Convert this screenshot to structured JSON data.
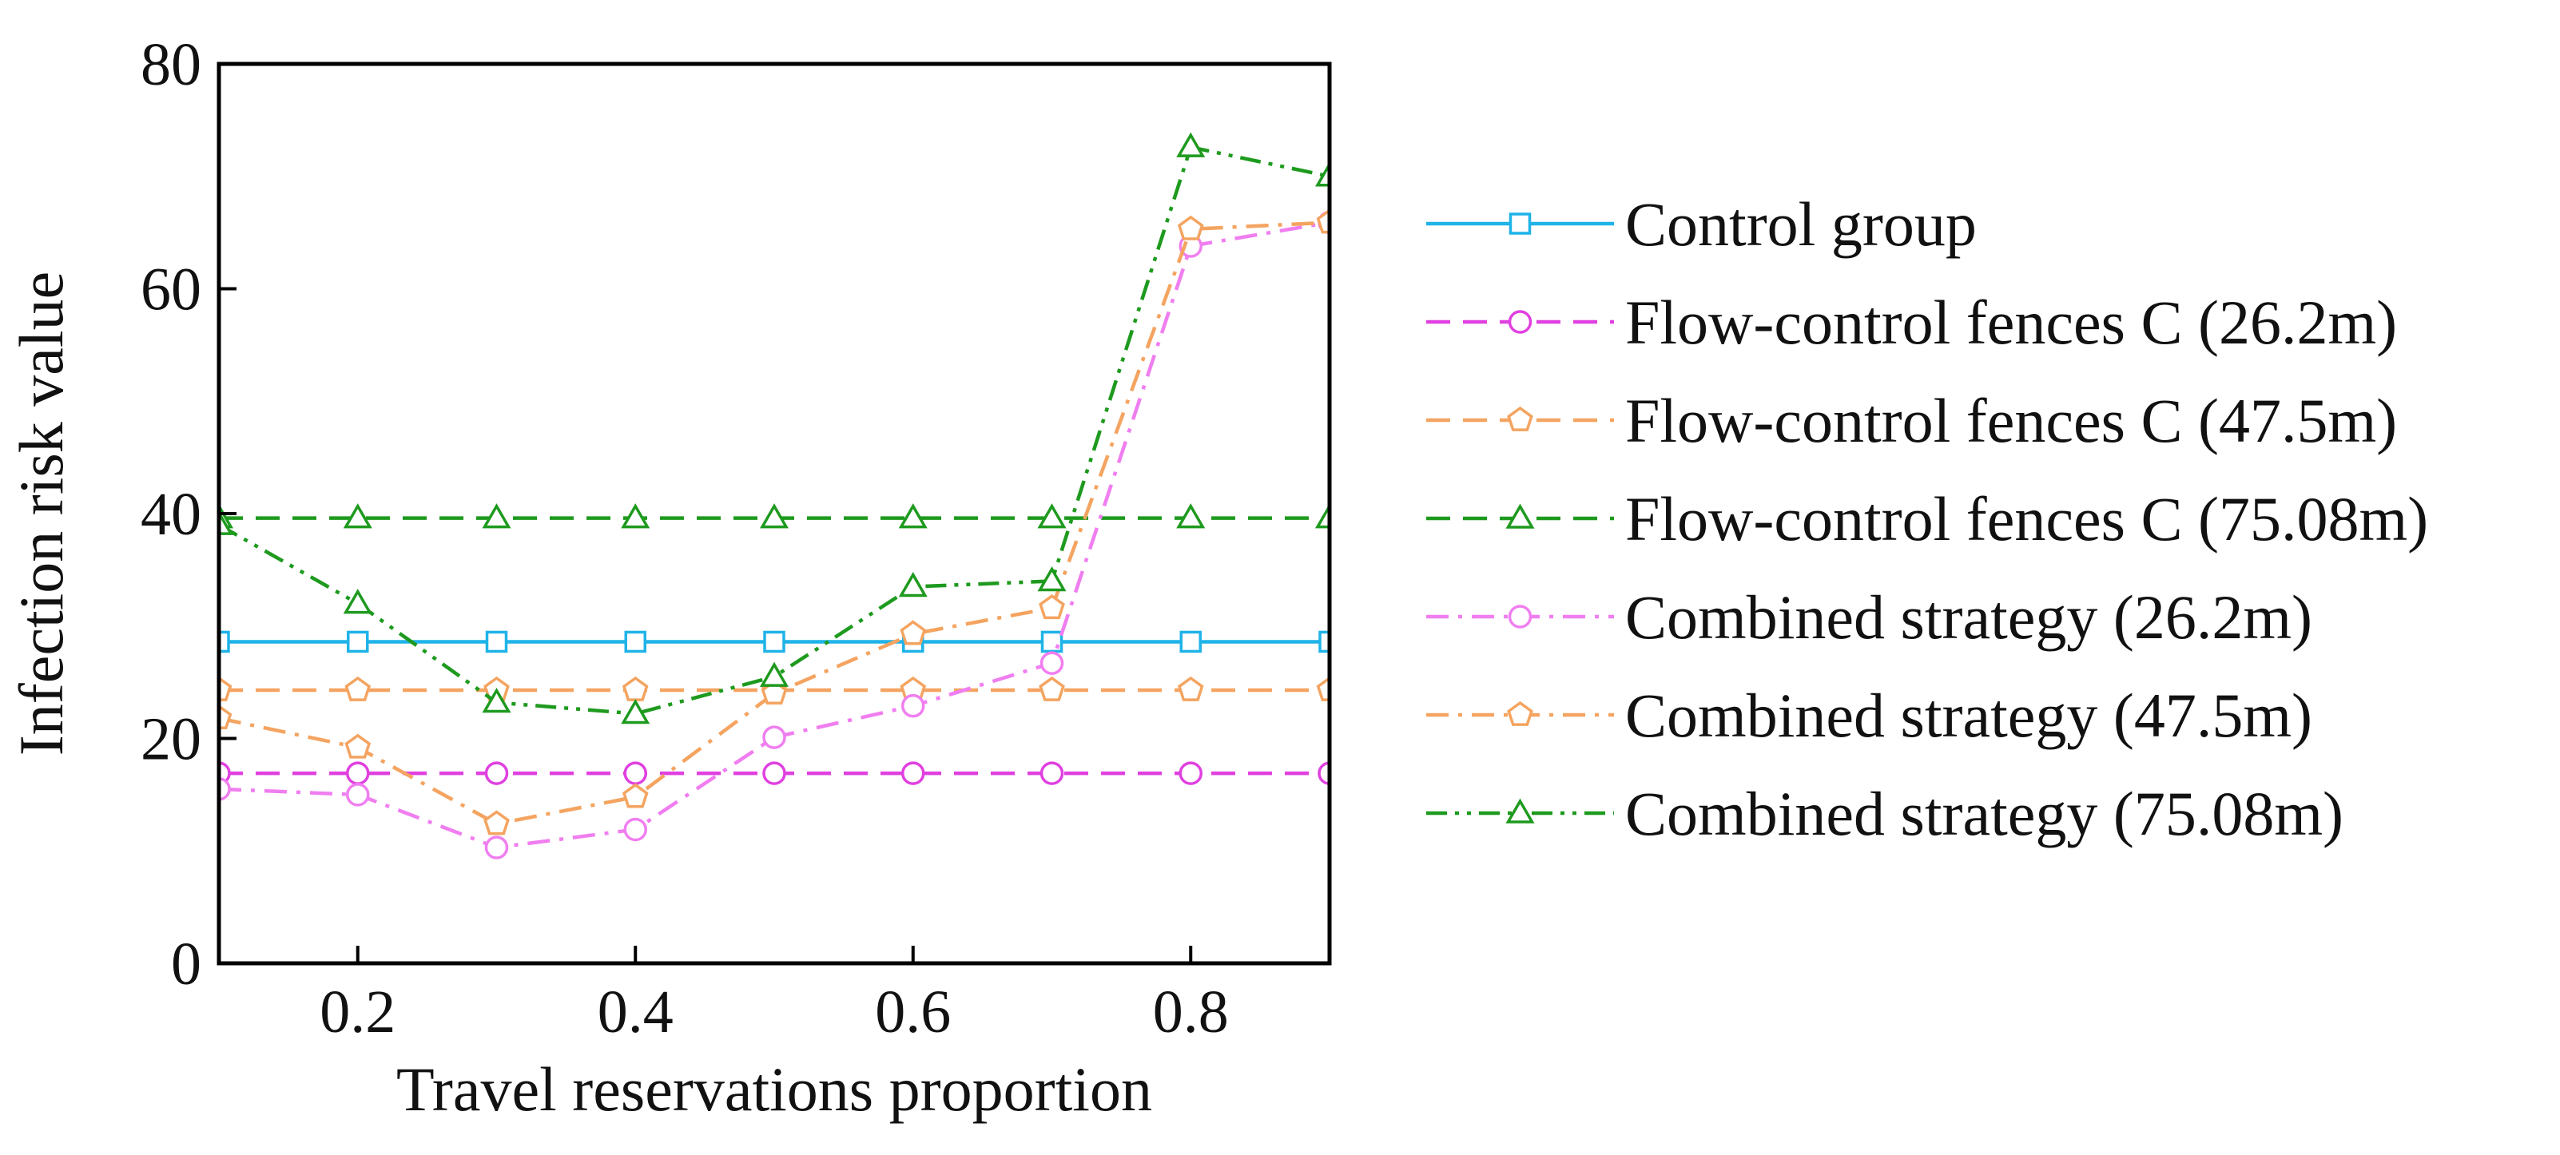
{
  "chart_data": {
    "type": "line",
    "title": "",
    "xlabel": "Travel reservations proportion",
    "ylabel": "Infection risk value",
    "xlim": [
      0.1,
      0.9
    ],
    "ylim": [
      0,
      80
    ],
    "x_ticks": [
      0.2,
      0.4,
      0.6,
      0.8
    ],
    "x_tick_labels": [
      "0.2",
      "0.4",
      "0.6",
      "0.8"
    ],
    "y_ticks": [
      0,
      20,
      40,
      60,
      80
    ],
    "y_tick_labels": [
      "0",
      "20",
      "40",
      "60",
      "80"
    ],
    "grid": false,
    "legend_position": "right",
    "x": [
      0.1,
      0.2,
      0.3,
      0.4,
      0.5,
      0.6,
      0.7,
      0.8,
      0.9
    ],
    "series": [
      {
        "name": "Control group",
        "color": "#1fb3e8",
        "dash": "solid",
        "marker": "square",
        "values": [
          28.6,
          28.6,
          28.6,
          28.6,
          28.6,
          28.6,
          28.6,
          28.6,
          28.6
        ]
      },
      {
        "name": "Flow-control fences C (26.2m)",
        "color": "#e040e0",
        "dash": "dash",
        "marker": "circle",
        "values": [
          16.9,
          16.9,
          16.9,
          16.9,
          16.9,
          16.9,
          16.9,
          16.9,
          16.9
        ]
      },
      {
        "name": "Flow-control fences C (47.5m)",
        "color": "#f4a460",
        "dash": "dash",
        "marker": "pentagon",
        "values": [
          24.3,
          24.3,
          24.3,
          24.3,
          24.3,
          24.3,
          24.3,
          24.3,
          24.3
        ]
      },
      {
        "name": "Flow-control fences C (75.08m)",
        "color": "#1e9a1e",
        "dash": "dash",
        "marker": "triangle",
        "values": [
          39.6,
          39.6,
          39.6,
          39.6,
          39.6,
          39.6,
          39.6,
          39.6,
          39.6
        ]
      },
      {
        "name": "Combined strategy (26.2m)",
        "color": "#f07ef0",
        "dash": "dashdot",
        "marker": "circle",
        "values": [
          15.5,
          15.0,
          10.3,
          11.9,
          20.1,
          22.9,
          26.7,
          63.8,
          65.9
        ]
      },
      {
        "name": "Combined strategy (47.5m)",
        "color": "#f4a460",
        "dash": "dashdot",
        "marker": "pentagon",
        "values": [
          21.8,
          19.2,
          12.4,
          14.8,
          24.0,
          29.3,
          31.6,
          65.3,
          65.9
        ]
      },
      {
        "name": "Combined strategy (75.08m)",
        "color": "#1e9a1e",
        "dash": "dashdotdot",
        "marker": "triangle",
        "values": [
          39.0,
          32.0,
          23.2,
          22.2,
          25.5,
          33.5,
          34.0,
          72.6,
          70.0
        ]
      }
    ]
  }
}
